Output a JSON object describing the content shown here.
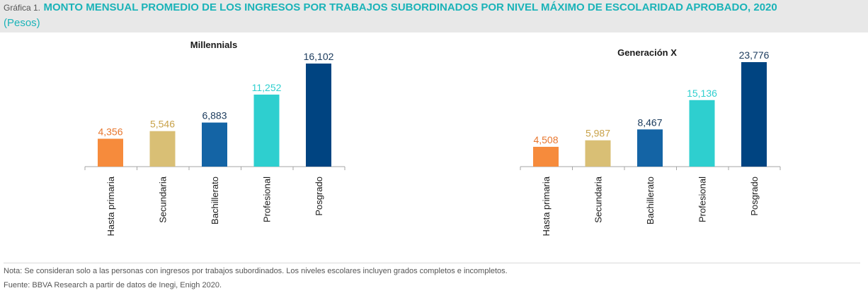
{
  "header": {
    "prefix": "Gráfica 1.",
    "title": "MONTO MENSUAL PROMEDIO DE LOS INGRESOS POR TRABAJOS SUBORDINADOS POR NIVEL MÁXIMO DE ESCOLARIDAD APROBADO, 2020",
    "subtitle": "(Pesos)"
  },
  "chart_data": [
    {
      "type": "bar",
      "title": "Millennials",
      "categories": [
        "Hasta primaria",
        "Secundaria",
        "Bachillerato",
        "Profesional",
        "Posgrado"
      ],
      "values": [
        4356,
        5546,
        6883,
        11252,
        16102
      ],
      "value_labels": [
        "4,356",
        "5,546",
        "6,883",
        "11,252",
        "16,102"
      ],
      "bar_colors": [
        "#f68b3c",
        "#d9bf75",
        "#1464a5",
        "#2ecfcf",
        "#004481"
      ],
      "label_colors": [
        "#e8762d",
        "#c8a24a",
        "#1a3a5c",
        "#2ecfcf",
        "#1a3a5c"
      ],
      "ylim": [
        0,
        16102
      ],
      "xlabel": "",
      "ylabel": ""
    },
    {
      "type": "bar",
      "title": "Generación X",
      "categories": [
        "Hasta primaria",
        "Secundaria",
        "Bachillerato",
        "Profesional",
        "Posgrado"
      ],
      "values": [
        4508,
        5987,
        8467,
        15136,
        23776
      ],
      "value_labels": [
        "4,508",
        "5,987",
        "8,467",
        "15,136",
        "23,776"
      ],
      "bar_colors": [
        "#f68b3c",
        "#d9bf75",
        "#1464a5",
        "#2ecfcf",
        "#004481"
      ],
      "label_colors": [
        "#e8762d",
        "#c8a24a",
        "#1a3a5c",
        "#2ecfcf",
        "#1a3a5c"
      ],
      "ylim": [
        0,
        23776
      ],
      "xlabel": "",
      "ylabel": ""
    }
  ],
  "footer": {
    "note": "Nota: Se consideran solo a las personas con ingresos por trabajos subordinados. Los niveles escolares incluyen grados completos e incompletos.",
    "source": "Fuente: BBVA Research a partir de datos de Inegi, Enigh 2020."
  }
}
